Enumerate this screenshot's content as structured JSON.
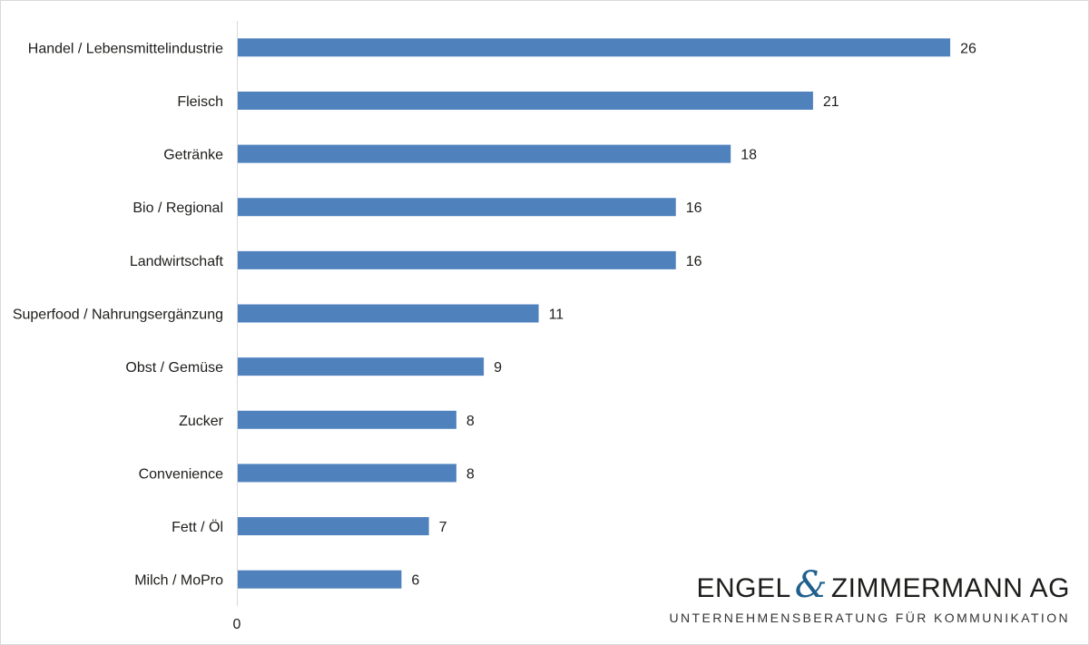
{
  "chart_data": {
    "type": "bar",
    "orientation": "horizontal",
    "categories": [
      "Handel / Lebensmittelindustrie",
      "Fleisch",
      "Getränke",
      "Bio / Regional",
      "Landwirtschaft",
      "Superfood / Nahrungsergänzung",
      "Obst / Gemüse",
      "Zucker",
      "Convenience",
      "Fett / Öl",
      "Milch / MoPro"
    ],
    "values": [
      26,
      21,
      18,
      16,
      16,
      11,
      9,
      8,
      8,
      7,
      6
    ],
    "data_labels": true,
    "x_tick_labels": [
      "0"
    ],
    "xlim": [
      0,
      30
    ],
    "grid": false,
    "legend": "none",
    "colors": {
      "bar": "#4f81bd",
      "axis": "#d9d9d9",
      "text": "#1d1d1b"
    }
  },
  "logo": {
    "part1": "ENGEL",
    "ampersand": "&",
    "part2": "ZIMMERMANN AG",
    "tagline": "UNTERNEHMENSBERATUNG FÜR KOMMUNIKATION",
    "accent_color": "#1f5f8b"
  }
}
